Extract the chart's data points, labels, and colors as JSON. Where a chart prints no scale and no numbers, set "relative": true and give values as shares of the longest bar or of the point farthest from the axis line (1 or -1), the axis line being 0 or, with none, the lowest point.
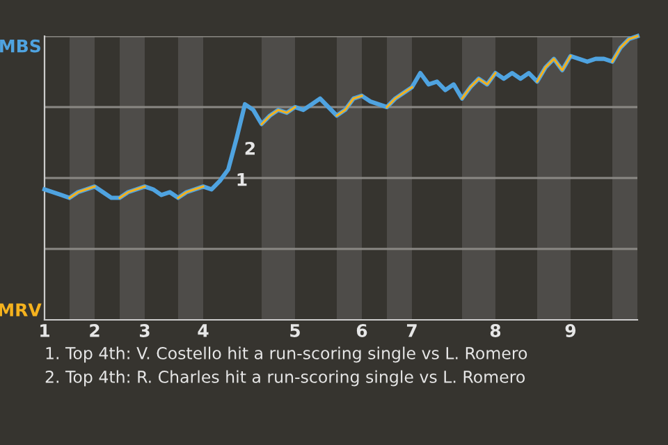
{
  "chart_data": {
    "type": "line",
    "relative": true,
    "grid": "y",
    "marker": "none",
    "line_style": "solid",
    "tick_labels": "x",
    "categories": [
      "1",
      null,
      null,
      null,
      null,
      null,
      "2",
      null,
      null,
      null,
      null,
      null,
      "3",
      null,
      null,
      null,
      null,
      null,
      null,
      "4",
      null,
      null,
      null,
      null,
      null,
      null,
      null,
      null,
      null,
      null,
      "5",
      null,
      null,
      null,
      null,
      null,
      null,
      null,
      "6",
      null,
      null,
      null,
      null,
      null,
      "7",
      null,
      null,
      null,
      null,
      null,
      null,
      null,
      null,
      null,
      "8",
      null,
      null,
      null,
      null,
      null,
      null,
      null,
      null,
      "9",
      null,
      null,
      null,
      null,
      null,
      null,
      null,
      null
    ],
    "series": [
      {
        "name": "MBS",
        "color": "#4fa3e0",
        "values": [
          0.46,
          0.45,
          0.44,
          0.43,
          0.45,
          0.46,
          0.47,
          0.45,
          0.43,
          0.43,
          0.45,
          0.46,
          0.47,
          0.46,
          0.44,
          0.45,
          0.43,
          0.45,
          0.46,
          0.47,
          0.46,
          0.49,
          0.53,
          0.64,
          0.76,
          0.74,
          0.69,
          0.72,
          0.74,
          0.73,
          0.75,
          0.74,
          0.76,
          0.78,
          0.75,
          0.72,
          0.74,
          0.78,
          0.79,
          0.77,
          0.76,
          0.75,
          0.78,
          0.8,
          0.82,
          0.87,
          0.83,
          0.84,
          0.81,
          0.83,
          0.78,
          0.82,
          0.85,
          0.83,
          0.87,
          0.85,
          0.87,
          0.85,
          0.87,
          0.84,
          0.89,
          0.92,
          0.88,
          0.93,
          0.92,
          0.91,
          0.92,
          0.92,
          0.91,
          0.96,
          0.99,
          1
        ]
      },
      {
        "name": "MRV",
        "color": "#f5b21e",
        "values": [
          null,
          null,
          null,
          0.43,
          0.45,
          0.46,
          0.47,
          null,
          null,
          0.43,
          0.45,
          0.46,
          0.47,
          null,
          null,
          null,
          0.43,
          0.45,
          0.46,
          0.47,
          null,
          null,
          null,
          null,
          null,
          null,
          0.69,
          0.72,
          0.74,
          0.73,
          0.75,
          null,
          null,
          null,
          null,
          0.72,
          0.74,
          0.78,
          0.79,
          null,
          null,
          0.75,
          0.78,
          0.8,
          0.82,
          null,
          null,
          null,
          null,
          null,
          0.78,
          0.82,
          0.85,
          0.83,
          0.87,
          null,
          null,
          null,
          null,
          0.84,
          0.89,
          0.92,
          0.88,
          0.93,
          null,
          null,
          null,
          null,
          0.91,
          0.96,
          0.99,
          1
        ]
      }
    ],
    "annotations": [
      "1",
      "2",
      "1. Top 4th: V. Costello hit a run-scoring single vs L. Romero",
      "2. Top 4th: R. Charles hit a run-scoring single vs L. Romero"
    ]
  }
}
